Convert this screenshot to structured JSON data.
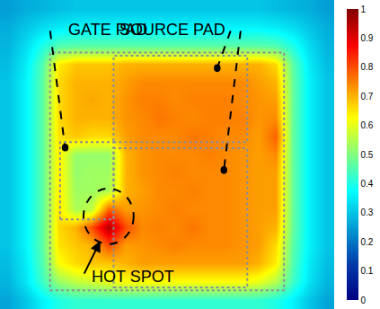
{
  "chart_data": {
    "type": "heatmap",
    "color": "Jet",
    "tick_labels": false,
    "xlim": [
      -0.5,
      19.5
    ],
    "ylim": [
      16.5,
      -0.5
    ],
    "cells": [
      [
        0.25,
        0.27,
        0.28,
        0.29,
        0.3,
        0.3,
        0.3,
        0.3,
        0.3,
        0.3,
        0.3,
        0.3,
        0.3,
        0.3,
        0.3,
        0.3,
        0.29,
        0.28,
        0.27,
        0.25
      ],
      [
        0.27,
        0.3,
        0.33,
        0.35,
        0.36,
        0.36,
        0.36,
        0.36,
        0.36,
        0.36,
        0.36,
        0.36,
        0.36,
        0.36,
        0.36,
        0.36,
        0.35,
        0.33,
        0.3,
        0.27
      ],
      [
        0.28,
        0.33,
        0.4,
        0.45,
        0.46,
        0.46,
        0.46,
        0.46,
        0.46,
        0.46,
        0.46,
        0.46,
        0.46,
        0.46,
        0.46,
        0.46,
        0.45,
        0.4,
        0.33,
        0.28
      ],
      [
        0.29,
        0.35,
        0.45,
        0.64,
        0.68,
        0.68,
        0.68,
        0.7,
        0.7,
        0.7,
        0.7,
        0.7,
        0.7,
        0.7,
        0.7,
        0.7,
        0.66,
        0.46,
        0.35,
        0.29
      ],
      [
        0.3,
        0.36,
        0.46,
        0.66,
        0.7,
        0.7,
        0.7,
        0.72,
        0.74,
        0.74,
        0.74,
        0.74,
        0.74,
        0.74,
        0.74,
        0.72,
        0.7,
        0.47,
        0.36,
        0.3
      ],
      [
        0.3,
        0.36,
        0.46,
        0.66,
        0.7,
        0.71,
        0.7,
        0.73,
        0.75,
        0.75,
        0.74,
        0.75,
        0.75,
        0.75,
        0.74,
        0.73,
        0.72,
        0.47,
        0.36,
        0.3
      ],
      [
        0.3,
        0.36,
        0.46,
        0.66,
        0.7,
        0.7,
        0.7,
        0.73,
        0.74,
        0.76,
        0.75,
        0.74,
        0.75,
        0.75,
        0.75,
        0.73,
        0.74,
        0.47,
        0.36,
        0.3
      ],
      [
        0.3,
        0.36,
        0.46,
        0.65,
        0.68,
        0.66,
        0.66,
        0.72,
        0.74,
        0.74,
        0.74,
        0.76,
        0.75,
        0.74,
        0.74,
        0.72,
        0.78,
        0.47,
        0.36,
        0.3
      ],
      [
        0.3,
        0.36,
        0.46,
        0.64,
        0.52,
        0.52,
        0.52,
        0.7,
        0.73,
        0.74,
        0.74,
        0.74,
        0.75,
        0.74,
        0.73,
        0.72,
        0.74,
        0.47,
        0.36,
        0.3
      ],
      [
        0.3,
        0.36,
        0.46,
        0.64,
        0.52,
        0.53,
        0.53,
        0.7,
        0.73,
        0.74,
        0.75,
        0.74,
        0.74,
        0.74,
        0.73,
        0.72,
        0.72,
        0.47,
        0.36,
        0.3
      ],
      [
        0.3,
        0.36,
        0.46,
        0.64,
        0.53,
        0.53,
        0.54,
        0.7,
        0.72,
        0.74,
        0.74,
        0.75,
        0.74,
        0.74,
        0.73,
        0.72,
        0.72,
        0.47,
        0.36,
        0.3
      ],
      [
        0.3,
        0.36,
        0.46,
        0.65,
        0.54,
        0.56,
        0.78,
        0.72,
        0.73,
        0.74,
        0.75,
        0.74,
        0.74,
        0.74,
        0.73,
        0.72,
        0.72,
        0.47,
        0.36,
        0.3
      ],
      [
        0.3,
        0.36,
        0.46,
        0.66,
        0.7,
        0.8,
        0.95,
        0.8,
        0.74,
        0.75,
        0.74,
        0.76,
        0.74,
        0.74,
        0.73,
        0.72,
        0.7,
        0.47,
        0.36,
        0.3
      ],
      [
        0.3,
        0.36,
        0.46,
        0.65,
        0.68,
        0.7,
        0.8,
        0.72,
        0.73,
        0.74,
        0.75,
        0.74,
        0.74,
        0.74,
        0.73,
        0.72,
        0.66,
        0.46,
        0.36,
        0.3
      ],
      [
        0.29,
        0.35,
        0.45,
        0.62,
        0.66,
        0.68,
        0.68,
        0.7,
        0.72,
        0.72,
        0.72,
        0.72,
        0.72,
        0.72,
        0.72,
        0.7,
        0.64,
        0.45,
        0.35,
        0.29
      ],
      [
        0.28,
        0.34,
        0.43,
        0.52,
        0.56,
        0.58,
        0.6,
        0.62,
        0.62,
        0.62,
        0.62,
        0.62,
        0.62,
        0.62,
        0.62,
        0.6,
        0.55,
        0.43,
        0.34,
        0.28
      ],
      [
        0.26,
        0.3,
        0.36,
        0.4,
        0.42,
        0.42,
        0.42,
        0.42,
        0.42,
        0.42,
        0.42,
        0.42,
        0.42,
        0.42,
        0.42,
        0.42,
        0.4,
        0.36,
        0.3,
        0.26
      ]
    ],
    "colorbar": {
      "range": [
        0,
        1
      ],
      "ticks": [
        0,
        0.1,
        0.2,
        0.3,
        0.4,
        0.5,
        0.6,
        0.7,
        0.8,
        0.9,
        1
      ]
    },
    "annotations": [
      {
        "text": "GATE PAD"
      },
      {
        "text": "SOURCE PAD"
      },
      {
        "text": "HOT SPOT"
      }
    ]
  }
}
